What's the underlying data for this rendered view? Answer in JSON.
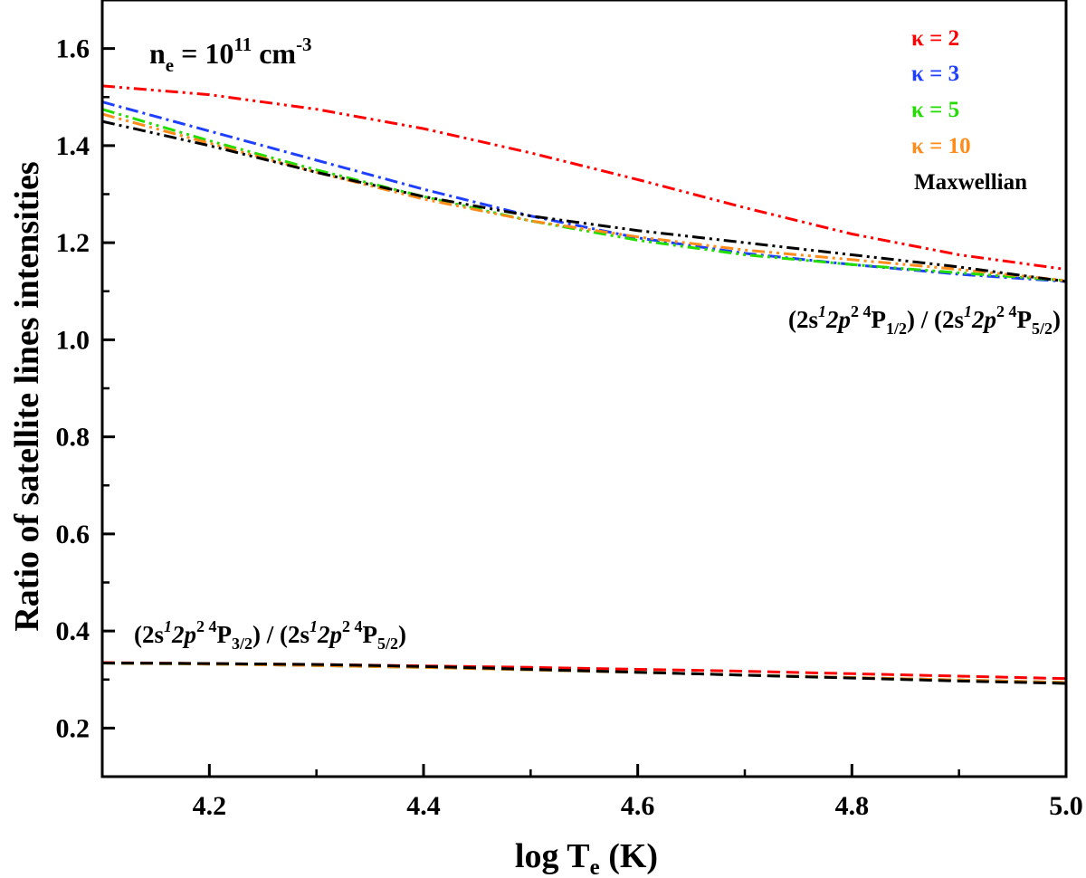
{
  "chart_data": {
    "type": "line",
    "xlabel": "log T",
    "xlabel_sub": "e",
    "xlabel_unit": " (K)",
    "ylabel": "Ratio of satellite lines intensities",
    "xlim": [
      4.1,
      5.0
    ],
    "ylim": [
      0.1,
      1.7
    ],
    "xticks": [
      4.2,
      4.4,
      4.6,
      4.8,
      5.0
    ],
    "xtick_labels": [
      "4.2",
      "4.4",
      "4.6",
      "4.8",
      "5.0"
    ],
    "yticks": [
      0.2,
      0.4,
      0.6,
      0.8,
      1.0,
      1.2,
      1.4,
      1.6
    ],
    "ytick_labels": [
      "0.2",
      "0.4",
      "0.6",
      "0.8",
      "1.0",
      "1.2",
      "1.4",
      "1.6"
    ],
    "grid": false,
    "legend_position": "top-right",
    "legend": [
      {
        "label": "κ = 2",
        "color": "#ff0000"
      },
      {
        "label": "κ = 3",
        "color": "#1f3fff"
      },
      {
        "label": "κ = 5",
        "color": "#22dd00"
      },
      {
        "label": "κ = 10",
        "color": "#ff8c1a"
      },
      {
        "label": "Maxwellian",
        "color": "#000000"
      }
    ],
    "annotations": {
      "density": {
        "main": "n",
        "sub": "e",
        "mid": " = 10",
        "sup": "11",
        "unit": " cm",
        "unit_sup": "-3"
      },
      "ratio_upper": {
        "open": "(2s",
        "s1": "1",
        "mid": "2p",
        "s2": "2",
        "sp4": " 4",
        "P": "P",
        "sub": "1/2",
        "sep": ") / (2s",
        "s1b": "1",
        "midb": "2p",
        "s2b": "2",
        "sp4b": " 4",
        "Pb": "P",
        "subb": "5/2",
        "close": ")"
      },
      "ratio_lower": {
        "open": "(2s",
        "s1": "1",
        "mid": "2p",
        "s2": "2",
        "sp4": " 4",
        "P": "P",
        "sub": "3/2",
        "sep": ") / (2s",
        "s1b": "1",
        "midb": "2p",
        "s2b": "2",
        "sp4b": " 4",
        "Pb": "P",
        "subb": "5/2",
        "close": ")"
      }
    },
    "series": [
      {
        "name": "κ = 2",
        "group": "4P1/2 / 4P5/2",
        "color": "#ff0000",
        "style": "dashdotdot",
        "x": [
          4.1,
          4.2,
          4.3,
          4.4,
          4.5,
          4.6,
          4.7,
          4.8,
          4.9,
          5.0
        ],
        "y": [
          1.523,
          1.505,
          1.475,
          1.435,
          1.385,
          1.33,
          1.272,
          1.218,
          1.175,
          1.145
        ]
      },
      {
        "name": "κ = 3",
        "group": "4P1/2 / 4P5/2",
        "color": "#1f3fff",
        "style": "dashdot",
        "x": [
          4.1,
          4.2,
          4.3,
          4.4,
          4.5,
          4.6,
          4.7,
          4.8,
          4.9,
          5.0
        ],
        "y": [
          1.49,
          1.43,
          1.37,
          1.31,
          1.255,
          1.21,
          1.178,
          1.155,
          1.135,
          1.12
        ]
      },
      {
        "name": "κ = 5",
        "group": "4P1/2 / 4P5/2",
        "color": "#22dd00",
        "style": "dashdotdot",
        "x": [
          4.1,
          4.2,
          4.3,
          4.4,
          4.5,
          4.6,
          4.7,
          4.8,
          4.9,
          5.0
        ],
        "y": [
          1.475,
          1.41,
          1.35,
          1.295,
          1.245,
          1.205,
          1.175,
          1.155,
          1.138,
          1.122
        ]
      },
      {
        "name": "κ = 10",
        "group": "4P1/2 / 4P5/2",
        "color": "#ff8c1a",
        "style": "dashdotdot",
        "x": [
          4.1,
          4.2,
          4.3,
          4.4,
          4.5,
          4.6,
          4.7,
          4.8,
          4.9,
          5.0
        ],
        "y": [
          1.465,
          1.405,
          1.345,
          1.29,
          1.245,
          1.212,
          1.185,
          1.165,
          1.145,
          1.122
        ]
      },
      {
        "name": "Maxwellian",
        "group": "4P1/2 / 4P5/2",
        "color": "#000000",
        "style": "dashdotdot",
        "x": [
          4.1,
          4.2,
          4.3,
          4.4,
          4.5,
          4.6,
          4.7,
          4.8,
          4.9,
          5.0
        ],
        "y": [
          1.45,
          1.4,
          1.345,
          1.295,
          1.255,
          1.225,
          1.2,
          1.175,
          1.15,
          1.12
        ]
      },
      {
        "name": "κ = 2",
        "group": "4P3/2 / 4P5/2",
        "color": "#ff0000",
        "style": "dashed",
        "x": [
          4.1,
          4.2,
          4.3,
          4.4,
          4.5,
          4.6,
          4.7,
          4.8,
          4.9,
          5.0
        ],
        "y": [
          0.335,
          0.333,
          0.331,
          0.328,
          0.325,
          0.321,
          0.317,
          0.312,
          0.307,
          0.302
        ]
      },
      {
        "name": "κ = 3",
        "group": "4P3/2 / 4P5/2",
        "color": "#1f3fff",
        "style": "dashed",
        "x": [
          4.1,
          4.2,
          4.3,
          4.4,
          4.5,
          4.6,
          4.7,
          4.8,
          4.9,
          5.0
        ],
        "y": [
          0.334,
          0.332,
          0.329,
          0.325,
          0.32,
          0.315,
          0.309,
          0.304,
          0.299,
          0.294
        ]
      },
      {
        "name": "κ = 5",
        "group": "4P3/2 / 4P5/2",
        "color": "#22dd00",
        "style": "dashed",
        "x": [
          4.1,
          4.2,
          4.3,
          4.4,
          4.5,
          4.6,
          4.7,
          4.8,
          4.9,
          5.0
        ],
        "y": [
          0.334,
          0.332,
          0.329,
          0.325,
          0.32,
          0.315,
          0.309,
          0.304,
          0.299,
          0.294
        ]
      },
      {
        "name": "κ = 10",
        "group": "4P3/2 / 4P5/2",
        "color": "#ff8c1a",
        "style": "dashed",
        "x": [
          4.1,
          4.2,
          4.3,
          4.4,
          4.5,
          4.6,
          4.7,
          4.8,
          4.9,
          5.0
        ],
        "y": [
          0.334,
          0.332,
          0.329,
          0.325,
          0.32,
          0.315,
          0.309,
          0.304,
          0.299,
          0.294
        ]
      },
      {
        "name": "Maxwellian",
        "group": "4P3/2 / 4P5/2",
        "color": "#000000",
        "style": "dashed",
        "x": [
          4.1,
          4.2,
          4.3,
          4.4,
          4.5,
          4.6,
          4.7,
          4.8,
          4.9,
          5.0
        ],
        "y": [
          0.334,
          0.333,
          0.331,
          0.327,
          0.321,
          0.315,
          0.309,
          0.303,
          0.297,
          0.292
        ]
      }
    ]
  }
}
